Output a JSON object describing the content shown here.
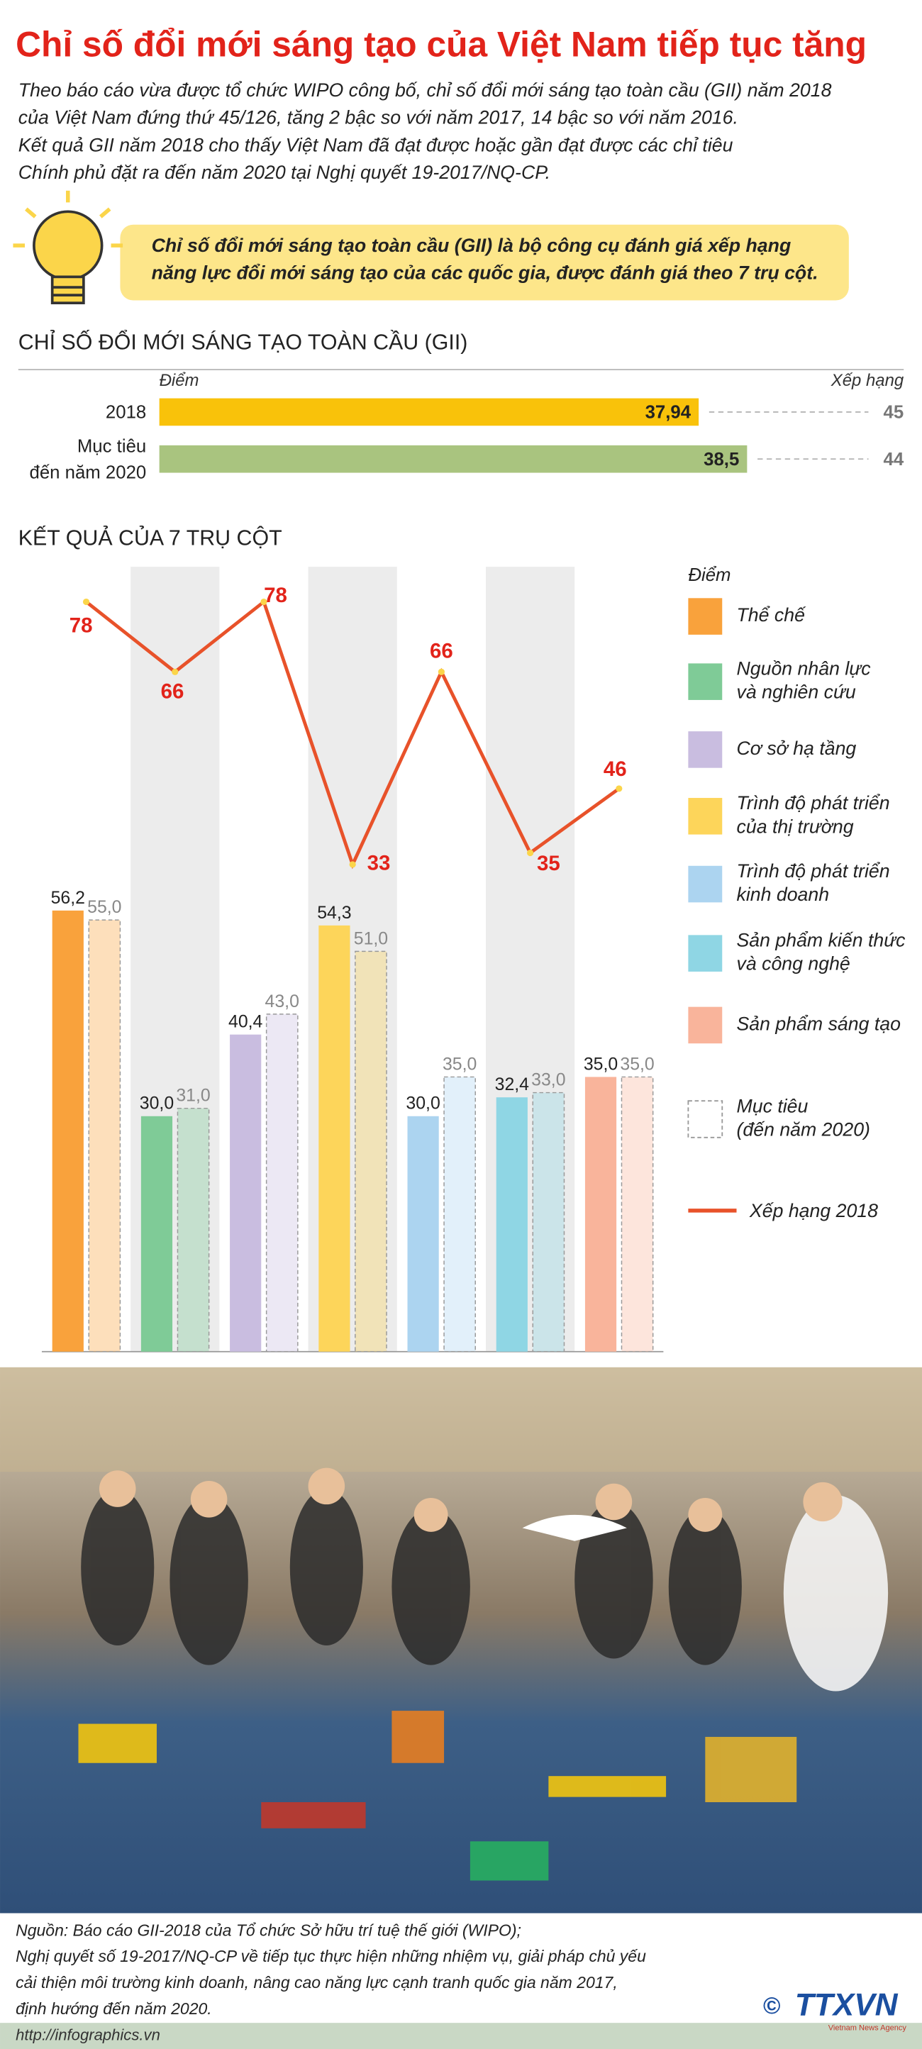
{
  "header": {
    "title": "Chỉ số đổi mới sáng tạo của Việt Nam tiếp tục tăng",
    "intro": [
      "Theo báo cáo vừa được tổ chức WIPO công bố, chỉ số đổi mới sáng tạo toàn cầu (GII) năm 2018",
      "của Việt Nam đứng thứ 45/126, tăng 2 bậc so với năm 2017, 14 bậc so với năm 2016.",
      "Kết quả GII năm 2018 cho thấy Việt Nam đã đạt được hoặc gần đạt được các chỉ tiêu",
      "Chính phủ đặt ra đến năm 2020 tại Nghị quyết 19-2017/NQ-CP."
    ],
    "callout": [
      "Chỉ số đổi mới sáng tạo toàn cầu (GII) là bộ công cụ đánh giá xếp hạng",
      "năng lực đổi mới sáng tạo của các quốc gia, được đánh giá theo 7 trụ cột."
    ]
  },
  "chart_data": [
    {
      "type": "hbar",
      "title": "CHỈ SỐ ĐỔI MỚI SÁNG TẠO TOÀN CẦU (GII)",
      "value_axis_label": "Điểm",
      "rank_label": "Xếp hạng",
      "categories": [
        "2018",
        "Mục tiêu\nđến năm 2020"
      ],
      "values": [
        37.94,
        38.5
      ],
      "value_labels": [
        "37,94",
        "38,5"
      ],
      "colors": [
        "#f9c20a",
        "#a9c47f"
      ],
      "ranks": [
        45,
        44
      ],
      "xlim": [
        31.7,
        40
      ]
    },
    {
      "type": "bar",
      "title": "KẾT QUẢ CỦA 7 TRỤ CỘT",
      "legend_title": "Điểm",
      "categories": [
        "Thể chế",
        "Nguồn nhân lực\nvà nghiên cứu",
        "Cơ sở hạ tầng",
        "Trình độ phát triển\ncủa thị trường",
        "Trình độ phát triển\nkinh doanh",
        "Sản phẩm kiến thức\nvà công nghệ",
        "Sản phẩm sáng tạo"
      ],
      "colors": [
        "#f9a23c",
        "#7fcb97",
        "#c9bde0",
        "#fdd55a",
        "#acd4f0",
        "#8fd6e4",
        "#f9b49b"
      ],
      "values": [
        56.2,
        30.0,
        40.4,
        54.3,
        30.0,
        32.4,
        35.0
      ],
      "value_labels": [
        "56,2",
        "30,0",
        "40,4",
        "54,3",
        "30,0",
        "32,4",
        "35,0"
      ],
      "ylim": [
        0,
        100
      ],
      "target": {
        "name": "Mục tiêu\n(đến năm 2020)",
        "values": [
          55,
          31,
          43,
          51,
          35,
          33,
          35
        ],
        "value_labels": [
          "55,0",
          "31,0",
          "43,0",
          "51,0",
          "35,0",
          "33,0",
          "35,0"
        ]
      },
      "rank": {
        "name": "Xếp hạng 2018",
        "color": "#e8522a",
        "axis": "y2",
        "values": [
          78,
          66,
          78,
          33,
          66,
          35,
          46
        ]
      },
      "y2lim": [
        0,
        100
      ]
    }
  ],
  "source": {
    "lines": [
      "Nguồn: Báo cáo GII-2018 của Tổ chức Sở hữu trí tuệ thế giới (WIPO);",
      "Nghị quyết số 19-2017/NQ-CP về tiếp tục thực hiện những nhiệm vụ, giải pháp chủ yếu",
      "cải thiện môi trường kinh doanh, nâng cao năng lực cạnh tranh quốc gia năm 2017,",
      "định hướng đến năm 2020."
    ]
  },
  "footer": {
    "url": "http://infographics.vn",
    "copyright": "©",
    "logo": "TTXVN",
    "agency": "Vietnam News Agency"
  }
}
